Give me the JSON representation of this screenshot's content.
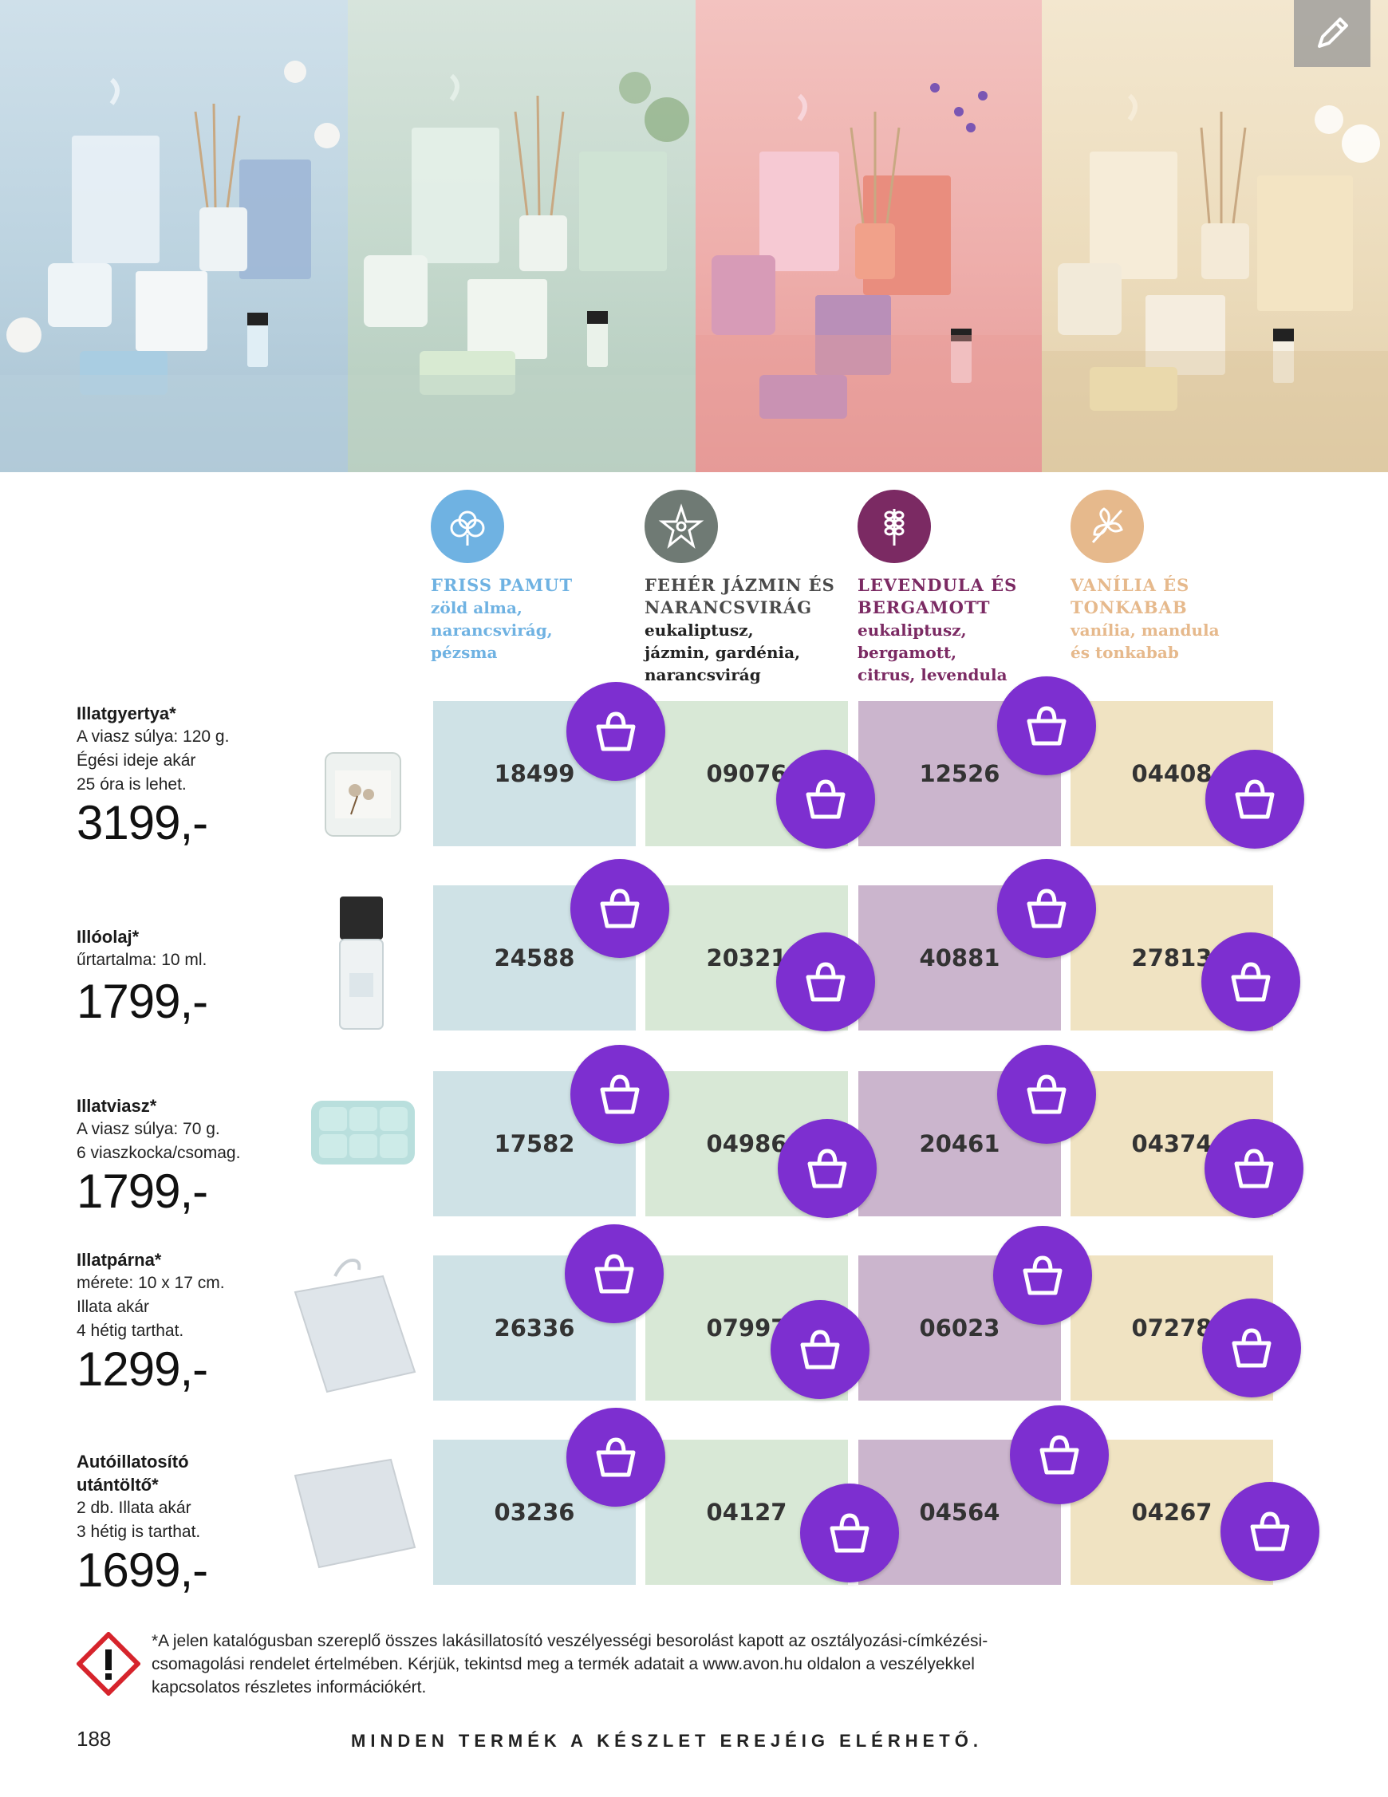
{
  "scents": [
    {
      "name": "FRISS PAMUT",
      "notes": "zöld alma,\nnarancsvirág,\npézsma",
      "color": "#6fb2e2",
      "icon": "cotton-flower-icon"
    },
    {
      "name": "FEHÉR JÁZMIN ÉS NARANCSVIRÁG",
      "notes": "eukaliptusz,\njázmin, gardénia,\nnarancsvirág",
      "color": "#6f7a74",
      "icon": "jasmine-flower-icon"
    },
    {
      "name": "LEVENDULA ÉS BERGAMOTT",
      "notes": "eukaliptusz,\nbergamott,\ncitrus, levendula",
      "color": "#7b2a63",
      "icon": "lavender-sprig-icon"
    },
    {
      "name": "VANÍLIA ÉS TONKABAB",
      "notes": "vanília, mandula\nés tonkabab",
      "color": "#e6b98c",
      "icon": "vanilla-flower-icon"
    }
  ],
  "products": [
    {
      "name": "Illatgyertya*",
      "desc": "A viasz súlya: 120 g.\nÉgési ideje akár\n25 óra is lehet.",
      "price": "3199,-",
      "codes": [
        "18499",
        "09076",
        "12526",
        "04408"
      ]
    },
    {
      "name": "Illóolaj*",
      "desc": "űrtartalma: 10 ml.",
      "price": "1799,-",
      "codes": [
        "24588",
        "20321",
        "40881",
        "27813"
      ]
    },
    {
      "name": "Illatviasz*",
      "desc": "A viasz súlya: 70 g.\n6 viaszkocka/csomag.",
      "price": "1799,-",
      "codes": [
        "17582",
        "04986",
        "20461",
        "04374"
      ]
    },
    {
      "name": "Illatpárna*",
      "desc": "mérete: 10 x 17 cm.\nIllata akár\n4 hétig tarthat.",
      "price": "1299,-",
      "codes": [
        "26336",
        "07997",
        "06023",
        "07278"
      ]
    },
    {
      "name": "Autóillatosító\nutántöltő*",
      "desc": "2 db. Illata akár\n3 hétig is tarthat.",
      "price": "1699,-",
      "codes": [
        "03236",
        "04127",
        "04564",
        "04267"
      ]
    }
  ],
  "footnote": "*A jelen katalógusban szereplő összes lakásillatosító veszélyességi besorolást kapott az osztályozási-címkézési-csomagolási rendelet értelmében. Kérjük, tekintsd meg a termék adatait a www.avon.hu oldalon a veszélyekkel kapcsolatos részletes információkért.",
  "page_number": "188",
  "tagline": "MINDEN TERMÉK A KÉSZLET EREJÉIG ELÉRHETŐ.",
  "colors": {
    "basket": "#7d2fd0",
    "cell_col1": "#cfe2e6",
    "cell_col2": "#d8e8d6",
    "cell_col3": "#cbb5cd",
    "cell_col4": "#f0e3c2"
  }
}
